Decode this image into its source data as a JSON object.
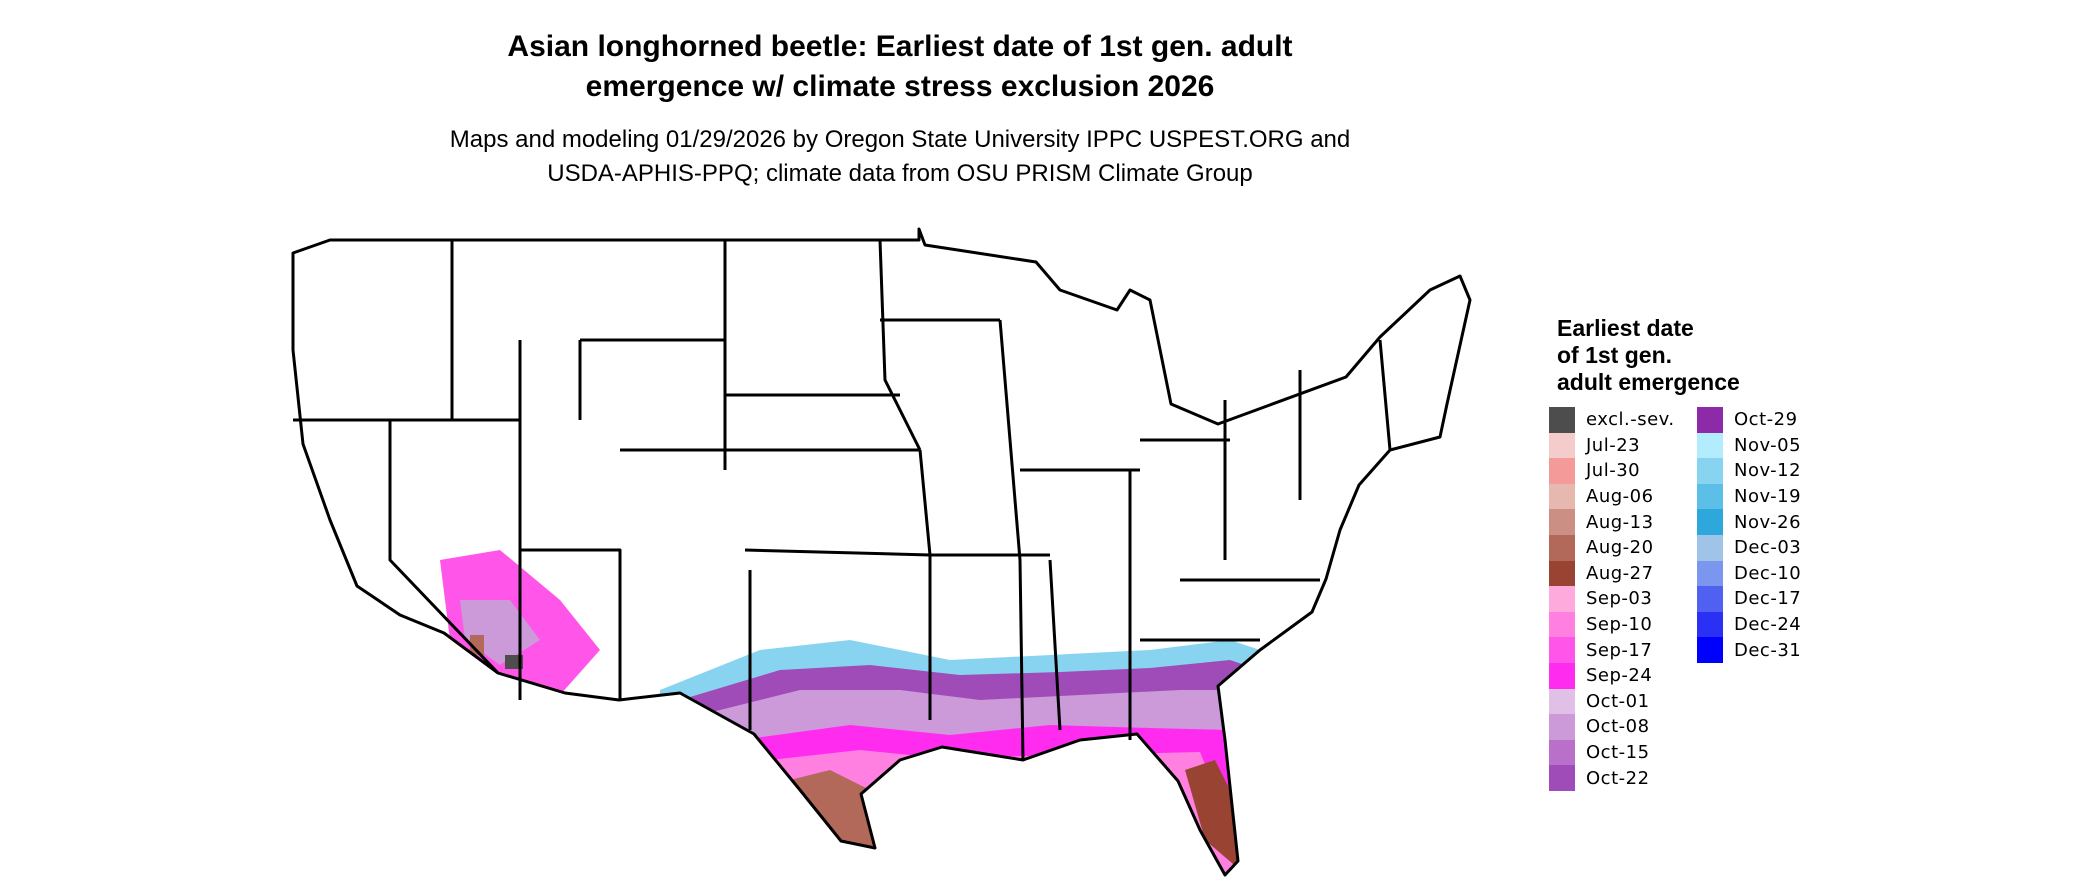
{
  "title": {
    "line1": "Asian longhorned beetle: Earliest date of 1st gen. adult",
    "line2": "emergence w/ climate stress exclusion 2026"
  },
  "subtitle": {
    "line1": "Maps and modeling 01/29/2026 by Oregon State University IPPC USPEST.ORG and",
    "line2": "USDA-APHIS-PPQ; climate data from OSU PRISM Climate Group"
  },
  "legend": {
    "title_lines": [
      "Earliest date",
      "of 1st gen.",
      "adult emergence"
    ],
    "items": [
      {
        "label": "excl.-sev.",
        "color": "#4d4d4d"
      },
      {
        "label": "Jul-23",
        "color": "#f4cccc"
      },
      {
        "label": "Jul-30",
        "color": "#f49a99"
      },
      {
        "label": "Aug-06",
        "color": "#e6b8af"
      },
      {
        "label": "Aug-13",
        "color": "#cc8f84"
      },
      {
        "label": "Aug-20",
        "color": "#b3695a"
      },
      {
        "label": "Aug-27",
        "color": "#994433"
      },
      {
        "label": "Sep-03",
        "color": "#ffaadd"
      },
      {
        "label": "Sep-10",
        "color": "#ff80e0"
      },
      {
        "label": "Sep-17",
        "color": "#ff55e8"
      },
      {
        "label": "Sep-24",
        "color": "#ff2cf0"
      },
      {
        "label": "Oct-01",
        "color": "#e0c0e6"
      },
      {
        "label": "Oct-08",
        "color": "#cc99d9"
      },
      {
        "label": "Oct-15",
        "color": "#b870c8"
      },
      {
        "label": "Oct-22",
        "color": "#a04cb8"
      },
      {
        "label": "Oct-29",
        "color": "#8c2aa8"
      },
      {
        "label": "Nov-05",
        "color": "#b3ecfc"
      },
      {
        "label": "Nov-12",
        "color": "#88d4f0"
      },
      {
        "label": "Nov-19",
        "color": "#5bbfe8"
      },
      {
        "label": "Nov-26",
        "color": "#2ea8dc"
      },
      {
        "label": "Dec-03",
        "color": "#a0c4e8"
      },
      {
        "label": "Dec-10",
        "color": "#7a96ee"
      },
      {
        "label": "Dec-17",
        "color": "#5060f0"
      },
      {
        "label": "Dec-24",
        "color": "#2a30f4"
      },
      {
        "label": "Dec-31",
        "color": "#0000ff"
      }
    ]
  }
}
